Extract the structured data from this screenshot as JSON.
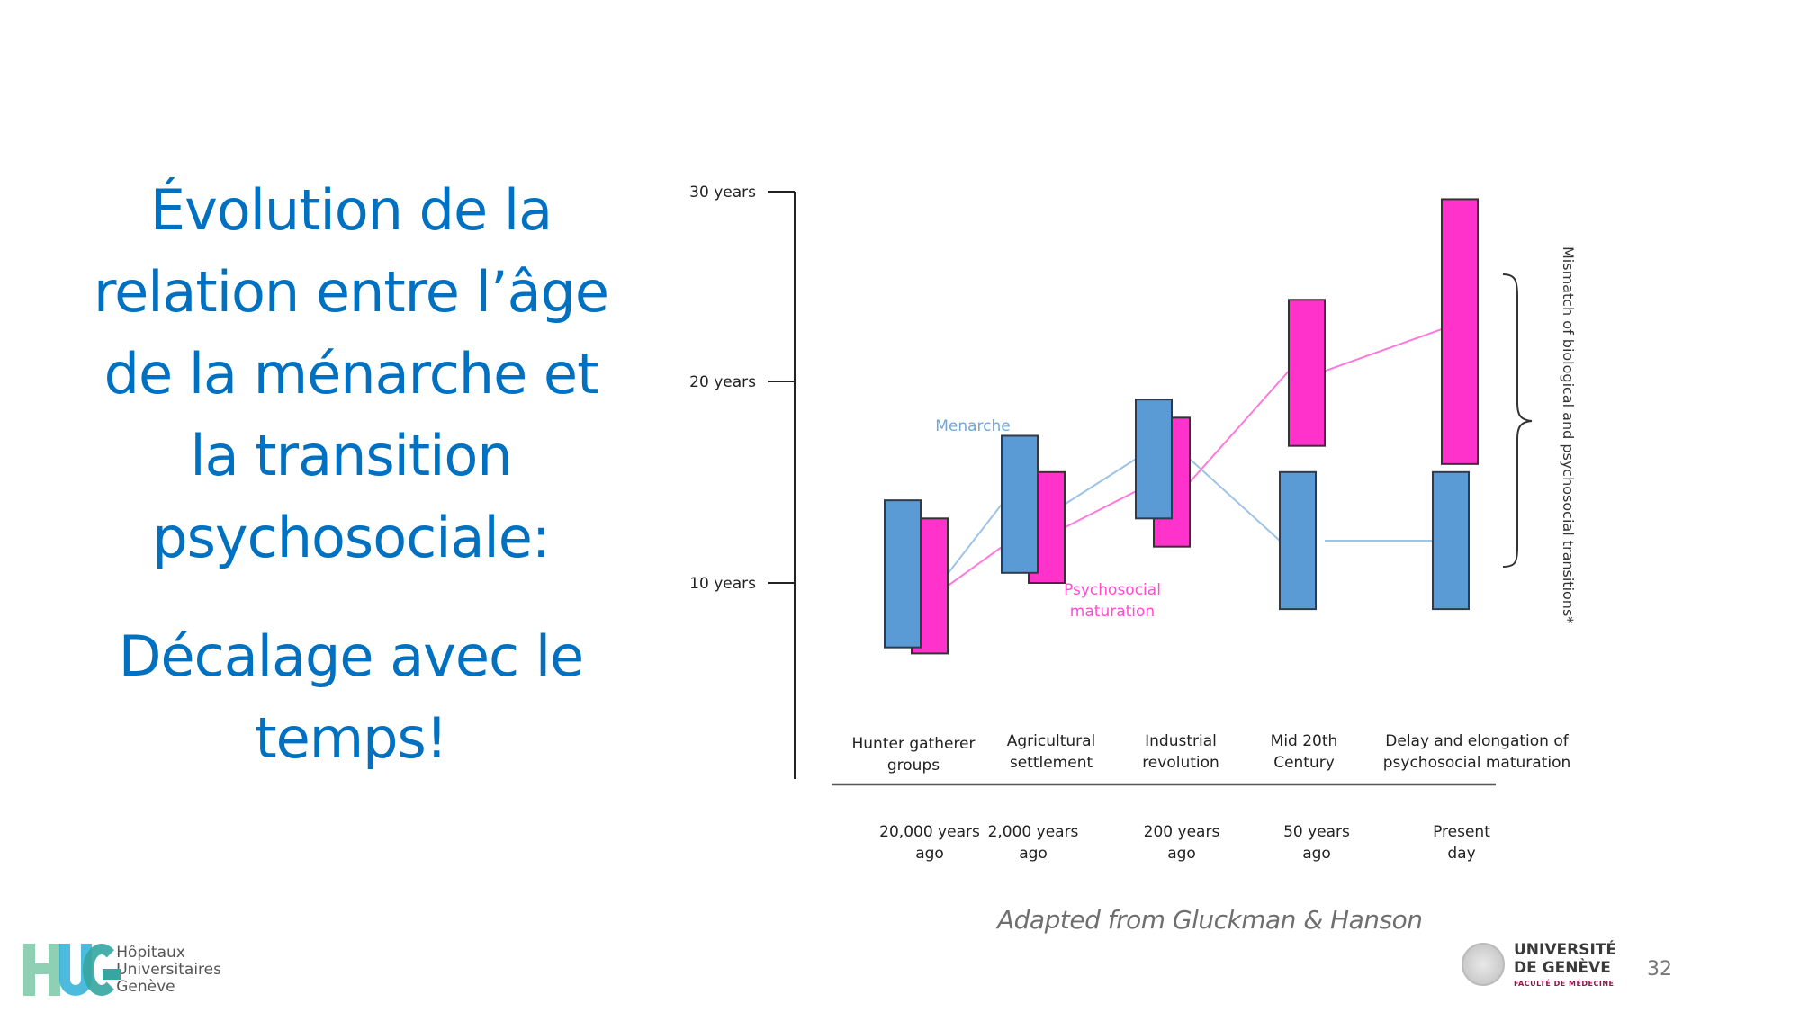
{
  "slide": {
    "title_lines": [
      "Évolution de la",
      "relation entre l’âge",
      "de la ménarche et",
      "la transition",
      "psychosociale:"
    ],
    "subtitle_lines": [
      "Décalage avec le",
      "temps!"
    ],
    "title_color": "#0070C0",
    "caption": "Adapted from Gluckman & Hanson",
    "page_number": "32"
  },
  "logos": {
    "hug": {
      "mark": "HUG",
      "lines": [
        "Hôpitaux",
        "Universitaires",
        "Genève"
      ]
    },
    "unige": {
      "name_lines": [
        "UNIVERSITÉ",
        "DE GENÈVE"
      ],
      "faculty": "FACULTÉ DE MÉDECINE"
    }
  },
  "chart_data": {
    "type": "bar",
    "subtype": "floating-range",
    "title": "",
    "xlabel": "",
    "ylabel": "",
    "ylim": [
      0,
      30
    ],
    "y_ticks": [
      {
        "value": 30,
        "label": "30  years"
      },
      {
        "value": 20,
        "label": "20  years"
      },
      {
        "value": 10,
        "label": "10  years"
      }
    ],
    "categories": [
      "Hunter gatherer groups",
      "Agricultural settlement",
      "Industrial revolution",
      "Mid 20th Century",
      "Delay and elongation of psychosocial maturation"
    ],
    "category_label_lines": [
      [
        "Hunter gatherer",
        "groups"
      ],
      [
        "Agricultural",
        "settlement"
      ],
      [
        "Industrial",
        "revolution"
      ],
      [
        "Mid 20th",
        "Century"
      ],
      [
        "Delay and elongation of",
        "psychosocial maturation"
      ]
    ],
    "time_labels": [
      [
        "20,000 years",
        "ago"
      ],
      [
        "2,000 years",
        "ago"
      ],
      [
        "200 years",
        "ago"
      ],
      [
        "50 years",
        "ago"
      ],
      [
        "Present",
        "day"
      ]
    ],
    "series": [
      {
        "name": "Menarche",
        "color": "#5B9BD5",
        "line_color": "#9DC3E6",
        "ranges": [
          [
            6.8,
            14.1
          ],
          [
            10.5,
            17.3
          ],
          [
            13.2,
            19.1
          ],
          [
            8.7,
            15.5
          ],
          [
            8.7,
            15.5
          ]
        ]
      },
      {
        "name": "Psychosocial maturation",
        "color": "#FF33CC",
        "line_color": "#FF79DC",
        "ranges": [
          [
            6.5,
            13.2
          ],
          [
            10.0,
            15.5
          ],
          [
            11.8,
            18.2
          ],
          [
            16.8,
            24.3
          ],
          [
            15.9,
            29.6
          ]
        ]
      }
    ],
    "annotations": {
      "menarche_label": "Menarche",
      "menarche_label_color": "#6FA8DC",
      "psychosocial_label_lines": [
        "Psychosocial",
        "maturation"
      ],
      "psychosocial_label_color": "#FF4DD2",
      "brace_label": "Mismatch of biological and psychosocial transitions*"
    },
    "grid": false,
    "legend": "inline labels"
  }
}
